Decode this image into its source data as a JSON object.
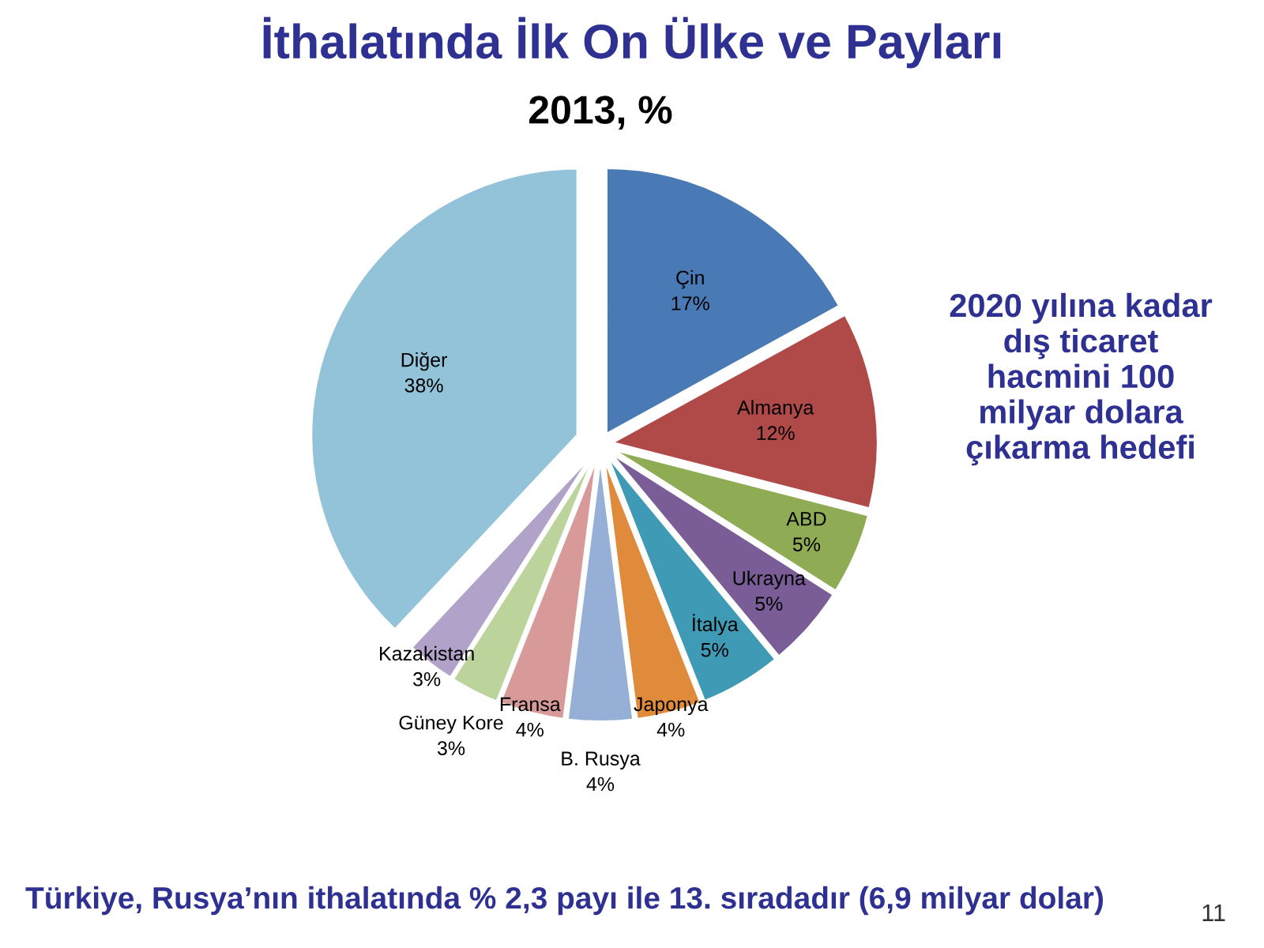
{
  "chart_data": {
    "type": "pie",
    "title": "İthalatında İlk On Ülke ve Payları",
    "subtitle": "2013, %",
    "categories": [
      "Çin",
      "Almanya",
      "ABD",
      "Ukrayna",
      "İtalya",
      "Japonya",
      "B. Rusya",
      "Fransa",
      "Güney Kore",
      "Kazakistan",
      "Diğer"
    ],
    "values": [
      17,
      12,
      5,
      5,
      5,
      4,
      4,
      4,
      3,
      3,
      38
    ],
    "value_labels": [
      "17%",
      "12%",
      "5%",
      "5%",
      "5%",
      "4%",
      "4%",
      "4%",
      "3%",
      "3%",
      "38%"
    ],
    "colors": [
      "#4a7ab5",
      "#b04a48",
      "#8fac55",
      "#7a5c97",
      "#3f9bb5",
      "#e08a3c",
      "#95afd6",
      "#d79a98",
      "#bcd39c",
      "#b0a2c8",
      "#93c3d8"
    ],
    "annotations": [
      "2020 yılına kadar dış ticaret hacmini 100 milyar dolara çıkarma hedefi",
      "Türkiye, Rusya’nın ithalatında % 2,3 payı ile 13. sıradadır (6,9 milyar dolar)",
      "11"
    ]
  }
}
